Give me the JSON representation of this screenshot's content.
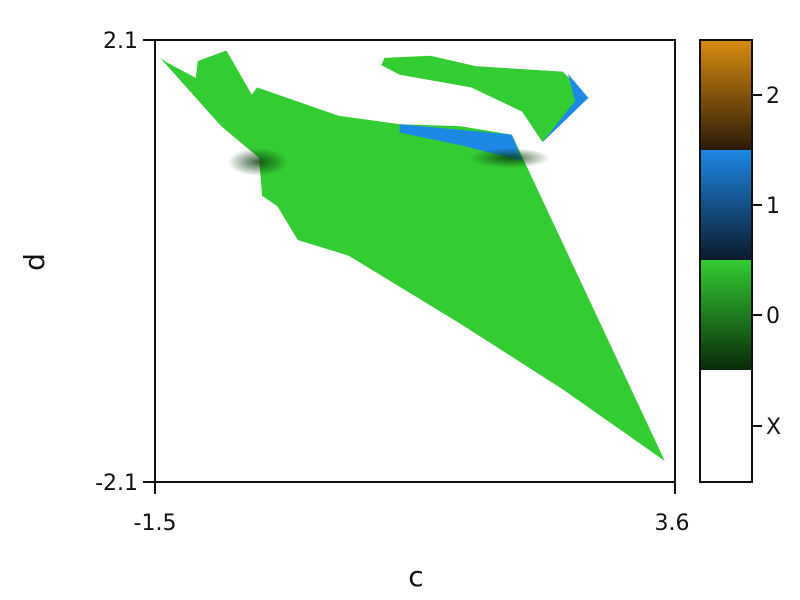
{
  "chart_data": {
    "type": "heatmap",
    "xlabel": "c",
    "ylabel": "d",
    "xlim": [
      -1.5,
      3.6
    ],
    "ylim": [
      -2.1,
      2.1
    ],
    "x_ticks": [
      "-1.5",
      "3.6"
    ],
    "y_ticks": [
      "2.1",
      "-2.1"
    ],
    "colorbar": {
      "placement": "right",
      "categories": [
        {
          "label": "2",
          "color": "#c8860e"
        },
        {
          "label": "1",
          "color": "#1e88e5"
        },
        {
          "label": "0",
          "color": "#33cc33"
        },
        {
          "label": "X",
          "color": "#ffffff"
        }
      ]
    },
    "regions": [
      {
        "name": "main-region",
        "value": "0",
        "color": "#33cc33",
        "points": [
          [
            -1.45,
            1.93
          ],
          [
            -1.37,
            1.88
          ],
          [
            -1.1,
            1.74
          ],
          [
            -1.08,
            1.9
          ],
          [
            -0.8,
            2.0
          ],
          [
            -0.55,
            1.58
          ],
          [
            -0.5,
            1.65
          ],
          [
            0.3,
            1.38
          ],
          [
            0.9,
            1.3
          ],
          [
            1.5,
            1.28
          ],
          [
            2.0,
            1.2
          ],
          [
            3.5,
            -1.9
          ],
          [
            2.5,
            -1.22
          ],
          [
            1.5,
            -0.6
          ],
          [
            0.4,
            0.05
          ],
          [
            -0.1,
            0.2
          ],
          [
            -0.3,
            0.52
          ],
          [
            -0.45,
            0.62
          ],
          [
            -0.48,
            0.98
          ],
          [
            -0.85,
            1.28
          ]
        ]
      },
      {
        "name": "upper-region",
        "value": "0",
        "color": "#33cc33",
        "points": [
          [
            0.75,
            1.93
          ],
          [
            1.2,
            1.95
          ],
          [
            1.65,
            1.85
          ],
          [
            2.5,
            1.8
          ],
          [
            2.75,
            1.55
          ],
          [
            2.3,
            1.13
          ],
          [
            2.1,
            1.42
          ],
          [
            1.6,
            1.65
          ],
          [
            0.9,
            1.77
          ],
          [
            0.72,
            1.86
          ]
        ]
      },
      {
        "name": "blue-band",
        "value": "1",
        "color": "#1e88e5",
        "points": [
          [
            0.9,
            1.3
          ],
          [
            2.0,
            1.2
          ],
          [
            2.1,
            0.95
          ],
          [
            1.5,
            1.1
          ],
          [
            0.9,
            1.22
          ]
        ]
      },
      {
        "name": "blue-edge",
        "value": "1",
        "color": "#1e88e5",
        "points": [
          [
            2.55,
            1.78
          ],
          [
            2.75,
            1.55
          ],
          [
            2.3,
            1.13
          ],
          [
            2.62,
            1.52
          ]
        ]
      }
    ]
  }
}
